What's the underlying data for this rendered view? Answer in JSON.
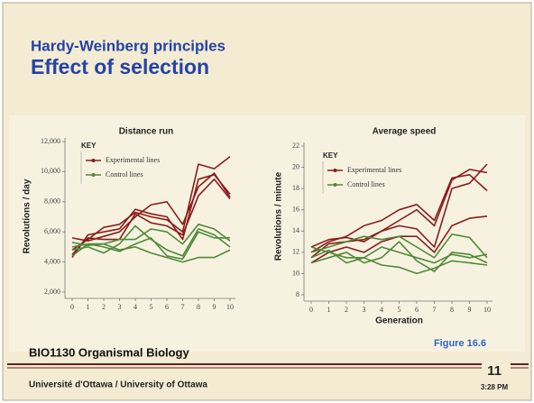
{
  "header": {
    "subtitle": "Hardy-Weinberg principles",
    "title": "Effect of selection"
  },
  "chart_data": [
    {
      "type": "line",
      "title": "Distance run",
      "ylabel": "Revolutions / day",
      "x": [
        0,
        1,
        2,
        3,
        4,
        5,
        6,
        7,
        8,
        9,
        10
      ],
      "xlim": [
        0,
        10
      ],
      "xticks": [
        0,
        1,
        2,
        3,
        4,
        5,
        6,
        7,
        8,
        9,
        10
      ],
      "ylim": [
        2000,
        12000
      ],
      "yticks": [
        {
          "value": 2000,
          "label": "2,000"
        },
        {
          "value": 4000,
          "label": "4,000"
        },
        {
          "value": 6000,
          "label": "6,000"
        },
        {
          "value": 8000,
          "label": "8,000"
        },
        {
          "value": 10000,
          "label": "10,000"
        },
        {
          "value": 12000,
          "label": "12,000"
        }
      ],
      "key": "KEY",
      "series": [
        {
          "name": "Experimental lines",
          "color": "#8b1c1c",
          "lines": [
            [
              4300,
              5800,
              6000,
              6200,
              7500,
              7200,
              7000,
              5500,
              9500,
              9800,
              8500
            ],
            [
              4800,
              5500,
              6300,
              6500,
              7300,
              7000,
              6800,
              6000,
              10500,
              10200,
              11000
            ],
            [
              5600,
              5400,
              5700,
              6000,
              7000,
              7800,
              8000,
              6500,
              9000,
              9900,
              8300
            ],
            [
              4500,
              5600,
              5500,
              5500,
              7200,
              6600,
              6400,
              5800,
              8400,
              9500,
              8200
            ]
          ]
        },
        {
          "name": "Control lines",
          "color": "#4f8a3a",
          "lines": [
            [
              5000,
              5200,
              5200,
              5500,
              5500,
              6200,
              6000,
              5200,
              6500,
              6200,
              5400
            ],
            [
              4800,
              5000,
              4600,
              5200,
              6400,
              5500,
              4800,
              4400,
              6200,
              5800,
              5000
            ],
            [
              5300,
              5100,
              5200,
              4800,
              5000,
              4600,
              4300,
              4000,
              4300,
              4300,
              4800
            ],
            [
              4400,
              5200,
              5000,
              4700,
              5200,
              5600,
              4400,
              4200,
              6000,
              5600,
              5600
            ]
          ]
        }
      ]
    },
    {
      "type": "line",
      "title": "Average speed",
      "ylabel": "Revolutions / minute",
      "xlabel": "Generation",
      "x": [
        0,
        1,
        2,
        3,
        4,
        5,
        6,
        7,
        8,
        9,
        10
      ],
      "xlim": [
        0,
        10
      ],
      "xticks": [
        0,
        1,
        2,
        3,
        4,
        5,
        6,
        7,
        8,
        9,
        10
      ],
      "ylim": [
        8,
        22
      ],
      "yticks": [
        8,
        10,
        12,
        14,
        16,
        18,
        20,
        22
      ],
      "key": "KEY",
      "series": [
        {
          "name": "Experimental lines",
          "color": "#8b1c1c",
          "lines": [
            [
              12.5,
              13.2,
              13.4,
              13,
              14,
              15,
              16,
              14.5,
              18.8,
              19.8,
              19.5
            ],
            [
              12,
              13,
              13.5,
              14.5,
              15,
              16,
              16.5,
              15,
              19,
              19.3,
              17.8
            ],
            [
              11.5,
              12.8,
              13,
              13.2,
              14,
              14.5,
              14.2,
              12.5,
              18,
              18.5,
              20.3
            ],
            [
              11,
              12,
              12.5,
              12,
              13,
              13.5,
              13.5,
              12,
              14.5,
              15.2,
              15.4
            ]
          ]
        },
        {
          "name": "Control lines",
          "color": "#4f8a3a",
          "lines": [
            [
              12,
              12.5,
              13,
              13.5,
              13.2,
              13.5,
              12.5,
              11.5,
              13.7,
              13.4,
              11.5
            ],
            [
              11,
              11.5,
              12,
              11,
              11.5,
              13,
              11.2,
              10.2,
              12,
              11.8,
              11
            ],
            [
              12.5,
              12,
              11.5,
              11.5,
              10.8,
              10.6,
              10,
              10.5,
              11.2,
              11,
              10.8
            ],
            [
              11.5,
              12.2,
              11,
              11.5,
              12.5,
              12,
              11.5,
              11,
              11.8,
              11.5,
              11.8
            ]
          ]
        }
      ]
    }
  ],
  "figure": "Figure 16.6",
  "footer": {
    "course": "BIO1130 Organismal Biology",
    "university": "Université d'Ottawa / University of Ottawa",
    "slide_number": "11",
    "time": "3:28 PM"
  }
}
